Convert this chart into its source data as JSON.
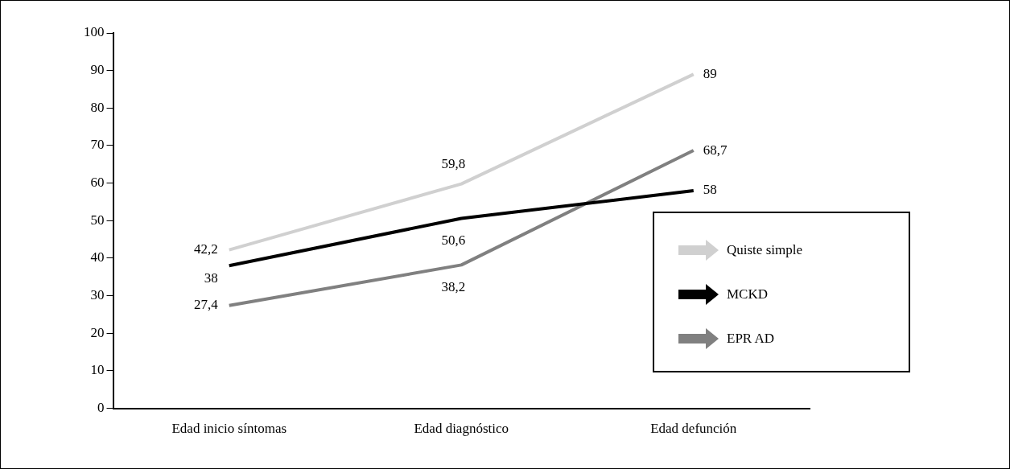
{
  "chart_data": {
    "type": "line",
    "categories": [
      "Edad inicio síntomas",
      "Edad diagnóstico",
      "Edad defunción"
    ],
    "series": [
      {
        "name": "Quiste simple",
        "color": "#d0d0d0",
        "values": [
          42.2,
          59.8,
          89
        ],
        "value_labels": [
          "42,2",
          "59,8",
          "89"
        ]
      },
      {
        "name": "MCKD",
        "color": "#000000",
        "values": [
          38,
          50.6,
          58
        ],
        "value_labels": [
          "38",
          "50,6",
          "58"
        ]
      },
      {
        "name": "EPR AD",
        "color": "#808080",
        "values": [
          27.4,
          38.2,
          68.7
        ],
        "value_labels": [
          "27,4",
          "38,2",
          "68,7"
        ]
      }
    ],
    "ylim": [
      0,
      100
    ],
    "yticks": [
      0,
      10,
      20,
      30,
      40,
      50,
      60,
      70,
      80,
      90,
      100
    ],
    "grid": false,
    "legend": "right",
    "marker": "none",
    "line_style": "solid"
  }
}
